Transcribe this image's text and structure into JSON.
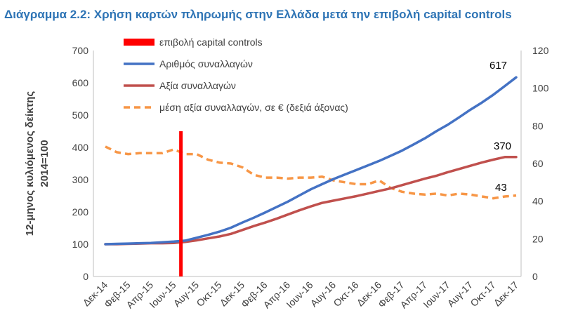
{
  "chart_data": {
    "type": "line",
    "title": "Διάγραμμα 2.2: Χρήση καρτών πληρωμής στην Ελλάδα μετά την επιβολή capital controls",
    "ylabel_line1": "12-μηνος κυλιόμενος δείκτης",
    "ylabel_line2": "2014=100",
    "xlabel": "",
    "ylim_left": [
      0,
      700
    ],
    "yticks_left": [
      0,
      100,
      200,
      300,
      400,
      500,
      600,
      700
    ],
    "ylim_right": [
      0,
      120
    ],
    "yticks_right": [
      0,
      20,
      40,
      60,
      80,
      100,
      120
    ],
    "grid": false,
    "legend_position": "top-left",
    "categories": [
      "Δεκ-14",
      "Ιαν-15",
      "Φεβ-15",
      "Μαρ-15",
      "Απρ-15",
      "Μαϊ-15",
      "Ιουν-15",
      "Ιουλ-15",
      "Αυγ-15",
      "Σεπ-15",
      "Οκτ-15",
      "Νοε-15",
      "Δεκ-15",
      "Ιαν-16",
      "Φεβ-16",
      "Μαρ-16",
      "Απρ-16",
      "Μαϊ-16",
      "Ιουν-16",
      "Ιουλ-16",
      "Αυγ-16",
      "Σεπ-16",
      "Οκτ-16",
      "Νοε-16",
      "Δεκ-16",
      "Ιαν-17",
      "Φεβ-17",
      "Μαρ-17",
      "Απρ-17",
      "Μαϊ-17",
      "Ιουν-17",
      "Ιουλ-17",
      "Αυγ-17",
      "Σεπ-17",
      "Οκτ-17",
      "Νοε-17",
      "Δεκ-17"
    ],
    "tick_labels": [
      "Δεκ-14",
      "Φεβ-15",
      "Απρ-15",
      "Ιουν-15",
      "Αυγ-15",
      "Οκτ-15",
      "Δεκ-15",
      "Φεβ-16",
      "Απρ-16",
      "Ιουν-16",
      "Αυγ-16",
      "Οκτ-16",
      "Δεκ-16",
      "Φεβ-17",
      "Απρ-17",
      "Ιουν-17",
      "Αυγ-17",
      "Οκτ-17",
      "Δεκ-17"
    ],
    "vline": {
      "label": "επιβολή capital controls",
      "at": "Ιουλ-15",
      "color": "#ff0000"
    },
    "series": [
      {
        "name": "Αριθμός συναλλαγών",
        "axis": "left",
        "color": "#4472c4",
        "dash": "none",
        "values": [
          100,
          101,
          102,
          103,
          104,
          106,
          108,
          111,
          120,
          129,
          139,
          151,
          167,
          182,
          198,
          215,
          232,
          251,
          270,
          286,
          302,
          316,
          330,
          344,
          358,
          374,
          390,
          409,
          428,
          450,
          470,
          493,
          517,
          539,
          563,
          590,
          617
        ],
        "end_label": "617"
      },
      {
        "name": "Αξία συναλλαγών",
        "axis": "left",
        "color": "#c0504d",
        "dash": "none",
        "values": [
          100,
          100,
          101,
          102,
          103,
          103,
          104,
          107,
          112,
          118,
          124,
          132,
          144,
          156,
          167,
          179,
          192,
          205,
          217,
          228,
          235,
          242,
          249,
          257,
          265,
          273,
          283,
          293,
          303,
          312,
          323,
          333,
          343,
          353,
          362,
          370,
          370
        ],
        "end_label": "370"
      },
      {
        "name": "μέση αξία συναλλαγών, σε € (δεξιά άξονας)",
        "axis": "right",
        "color": "#f79646",
        "dash": "dashed",
        "values": [
          69.0,
          66.0,
          65.0,
          65.5,
          65.5,
          65.5,
          67.5,
          65.0,
          65.0,
          62.0,
          60.5,
          60.0,
          58.0,
          54.0,
          52.5,
          52.5,
          52.0,
          52.5,
          52.5,
          53.0,
          51.0,
          50.0,
          49.0,
          49.0,
          51.0,
          47.0,
          45.0,
          44.0,
          43.5,
          44.0,
          43.0,
          44.0,
          43.5,
          42.5,
          41.5,
          42.5,
          43.0
        ],
        "end_label": "43"
      }
    ]
  }
}
